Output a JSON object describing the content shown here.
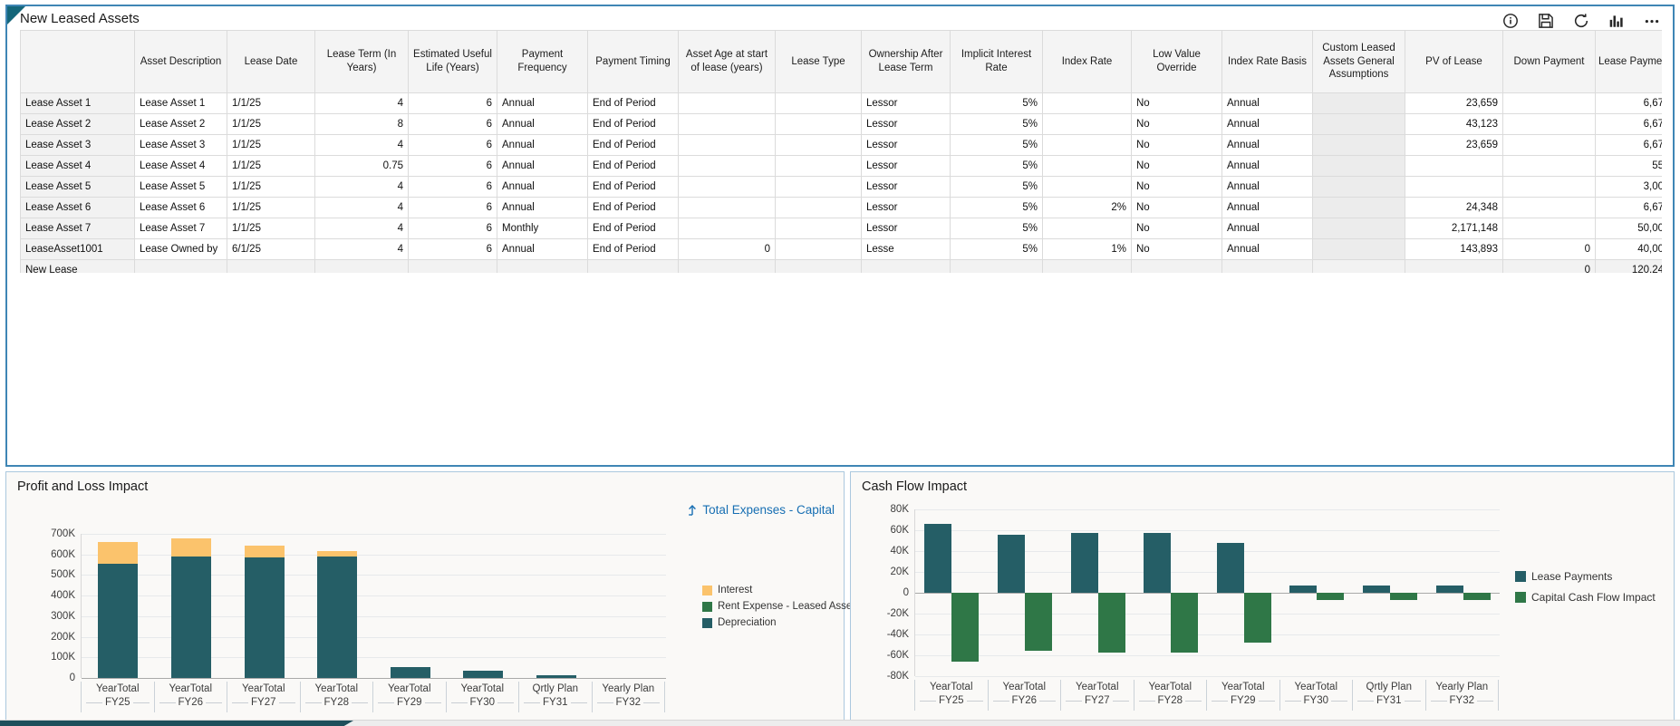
{
  "lease_panel": {
    "title": "New Leased Assets",
    "toolbar": {
      "icons": [
        {
          "name": "info-icon"
        },
        {
          "name": "save-icon"
        },
        {
          "name": "refresh-icon"
        },
        {
          "name": "chart-icon"
        },
        {
          "name": "more-icon"
        }
      ]
    },
    "table": {
      "columns": [
        "",
        "Asset Description",
        "Lease Date",
        "Lease Term (In Years)",
        "Estimated Useful Life (Years)",
        "Payment Frequency",
        "Payment Timing",
        "Asset Age at start of lease (years)",
        "Lease Type",
        "Ownership After Lease Term",
        "Implicit Interest Rate",
        "Index Rate",
        "Low Value Override",
        "Index Rate Basis",
        "Custom Leased Assets General Assumptions",
        "PV of Lease",
        "Down Payment",
        "Lease Payment"
      ],
      "rows": [
        [
          "Lease Asset 1",
          "Lease Asset 1",
          "1/1/25",
          "4",
          "6",
          "Annual",
          "End of Period",
          "",
          "",
          "Lessor",
          "5%",
          "",
          "No",
          "Annual",
          "",
          "23,659",
          "",
          "6,67"
        ],
        [
          "Lease Asset 2",
          "Lease Asset 2",
          "1/1/25",
          "8",
          "6",
          "Annual",
          "End of Period",
          "",
          "",
          "Lessor",
          "5%",
          "",
          "No",
          "Annual",
          "",
          "43,123",
          "",
          "6,67"
        ],
        [
          "Lease Asset 3",
          "Lease Asset 3",
          "1/1/25",
          "4",
          "6",
          "Annual",
          "End of Period",
          "",
          "",
          "Lessor",
          "5%",
          "",
          "No",
          "Annual",
          "",
          "23,659",
          "",
          "6,67"
        ],
        [
          "Lease Asset 4",
          "Lease Asset 4",
          "1/1/25",
          "0.75",
          "6",
          "Annual",
          "End of Period",
          "",
          "",
          "Lessor",
          "5%",
          "",
          "No",
          "Annual",
          "",
          "",
          "",
          "55"
        ],
        [
          "Lease Asset 5",
          "Lease Asset 5",
          "1/1/25",
          "4",
          "6",
          "Annual",
          "End of Period",
          "",
          "",
          "Lessor",
          "5%",
          "",
          "No",
          "Annual",
          "",
          "",
          "",
          "3,00"
        ],
        [
          "Lease Asset 6",
          "Lease Asset 6",
          "1/1/25",
          "4",
          "6",
          "Annual",
          "End of Period",
          "",
          "",
          "Lessor",
          "5%",
          "2%",
          "No",
          "Annual",
          "",
          "24,348",
          "",
          "6,67"
        ],
        [
          "Lease Asset 7",
          "Lease Asset 7",
          "1/1/25",
          "4",
          "6",
          "Monthly",
          "End of Period",
          "",
          "",
          "Lessor",
          "5%",
          "",
          "No",
          "Annual",
          "",
          "2,171,148",
          "",
          "50,00"
        ],
        [
          "LeaseAsset1001",
          "Lease Owned by",
          "6/1/25",
          "4",
          "6",
          "Annual",
          "End of Period",
          "0",
          "",
          "Lesse",
          "5%",
          "1%",
          "No",
          "Annual",
          "",
          "143,893",
          "0",
          "40,00"
        ],
        [
          "New Lease",
          "",
          "",
          "",
          "",
          "",
          "",
          "",
          "",
          "",
          "",
          "",
          "",
          "",
          "",
          "",
          "0",
          "120,24"
        ]
      ]
    }
  },
  "chart_data": [
    {
      "id": "pl",
      "type": "bar",
      "stacked": true,
      "title": "Profit and Loss Impact",
      "link_label": "Total Expenses - Capital",
      "categories": [
        {
          "period": "YearTotal",
          "year": "FY25"
        },
        {
          "period": "YearTotal",
          "year": "FY26"
        },
        {
          "period": "YearTotal",
          "year": "FY27"
        },
        {
          "period": "YearTotal",
          "year": "FY28"
        },
        {
          "period": "YearTotal",
          "year": "FY29"
        },
        {
          "period": "YearTotal",
          "year": "FY30"
        },
        {
          "period": "Qrtly Plan",
          "year": "FY31"
        },
        {
          "period": "Yearly Plan",
          "year": "FY32"
        }
      ],
      "series": [
        {
          "name": "Interest",
          "color": "#FBC36C",
          "values": [
            105000,
            86000,
            56000,
            25000,
            0,
            0,
            0,
            0
          ]
        },
        {
          "name": "Rent Expense - Leased Assets",
          "color": "#2F7747",
          "values": [
            0,
            0,
            0,
            0,
            0,
            0,
            0,
            0
          ]
        },
        {
          "name": "Depreciation",
          "color": "#255E66",
          "values": [
            553000,
            589000,
            586000,
            590000,
            55000,
            34000,
            14000,
            0
          ]
        }
      ],
      "ylim": [
        0,
        700000
      ],
      "yticks": [
        "700K",
        "600K",
        "500K",
        "400K",
        "300K",
        "200K",
        "100K",
        "0"
      ],
      "legend_position": "right",
      "grid": true
    },
    {
      "id": "cf",
      "type": "bar",
      "grouped": true,
      "title": "Cash Flow Impact",
      "categories": [
        {
          "period": "YearTotal",
          "year": "FY25"
        },
        {
          "period": "YearTotal",
          "year": "FY26"
        },
        {
          "period": "YearTotal",
          "year": "FY27"
        },
        {
          "period": "YearTotal",
          "year": "FY28"
        },
        {
          "period": "YearTotal",
          "year": "FY29"
        },
        {
          "period": "YearTotal",
          "year": "FY30"
        },
        {
          "period": "Qrtly Plan",
          "year": "FY31"
        },
        {
          "period": "Yearly Plan",
          "year": "FY32"
        }
      ],
      "series": [
        {
          "name": "Lease Payments",
          "color": "#255E66",
          "values": [
            66000,
            56000,
            57000,
            57000,
            48000,
            7000,
            7000,
            7000
          ]
        },
        {
          "name": "Capital Cash Flow Impact",
          "color": "#2F7747",
          "values": [
            -66000,
            -56000,
            -57000,
            -57000,
            -48000,
            -7000,
            -7000,
            -7000
          ]
        }
      ],
      "ylim": [
        -80000,
        80000
      ],
      "yticks": [
        "80K",
        "60K",
        "40K",
        "20K",
        "0",
        "-20K",
        "-40K",
        "-60K",
        "-80K"
      ],
      "legend_position": "right",
      "grid": true
    }
  ],
  "colors": {
    "panel_border_blue": "#3F86B5",
    "chart_border_blue": "#ABC8DE",
    "corner_teal": "#14667A",
    "bar_teal": "#255E66",
    "bar_yellow": "#FBC36C",
    "bar_green": "#2F7747",
    "link_blue": "#176FB3",
    "scroll_thumb": "#1E4F5B"
  }
}
